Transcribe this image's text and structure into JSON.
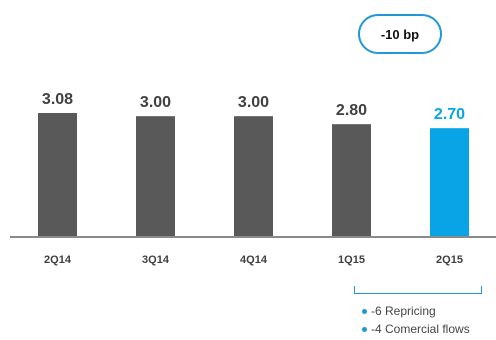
{
  "chart_data": {
    "type": "bar",
    "categories": [
      "2Q14",
      "3Q14",
      "4Q14",
      "1Q15",
      "2Q15"
    ],
    "values": [
      3.08,
      3.0,
      3.0,
      2.8,
      2.7
    ],
    "data_labels": [
      "3.08",
      "3.00",
      "3.00",
      "2.80",
      "2.70"
    ],
    "highlight_index": 4,
    "ylim": [
      0,
      3.08
    ],
    "grid": false,
    "colors": {
      "bar": "#595959",
      "highlight": "#08a4e6",
      "label": "#404040",
      "highlight_label": "#08a4e6"
    }
  },
  "badge": {
    "text": "-10 bp"
  },
  "notes": [
    "-6 Repricing",
    "-4 Comercial flows"
  ]
}
